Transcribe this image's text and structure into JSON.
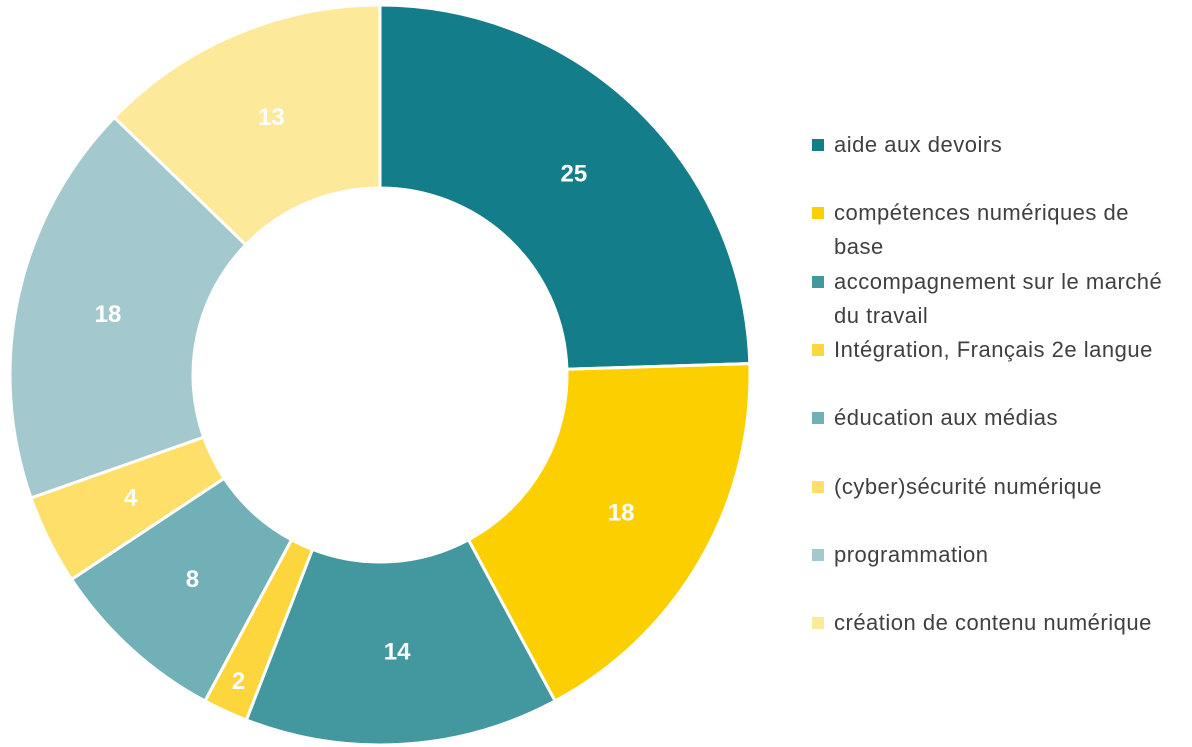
{
  "chart_data": {
    "type": "pie",
    "donut": true,
    "categories": [
      "aide aux devoirs",
      "compétences numériques de base",
      "accompagnement sur le marché du travail",
      "Intégration, Français 2e langue",
      "éducation aux médias",
      "(cyber)sécurité numérique",
      "programmation",
      "création de contenu numérique"
    ],
    "values": [
      25,
      18,
      14,
      2,
      8,
      4,
      18,
      13
    ],
    "colors": [
      "#147d8a",
      "#fcd000",
      "#43979f",
      "#fcd63c",
      "#72b0b7",
      "#fddf6a",
      "#a3c9cf",
      "#fde99a"
    ],
    "legend": "right"
  }
}
